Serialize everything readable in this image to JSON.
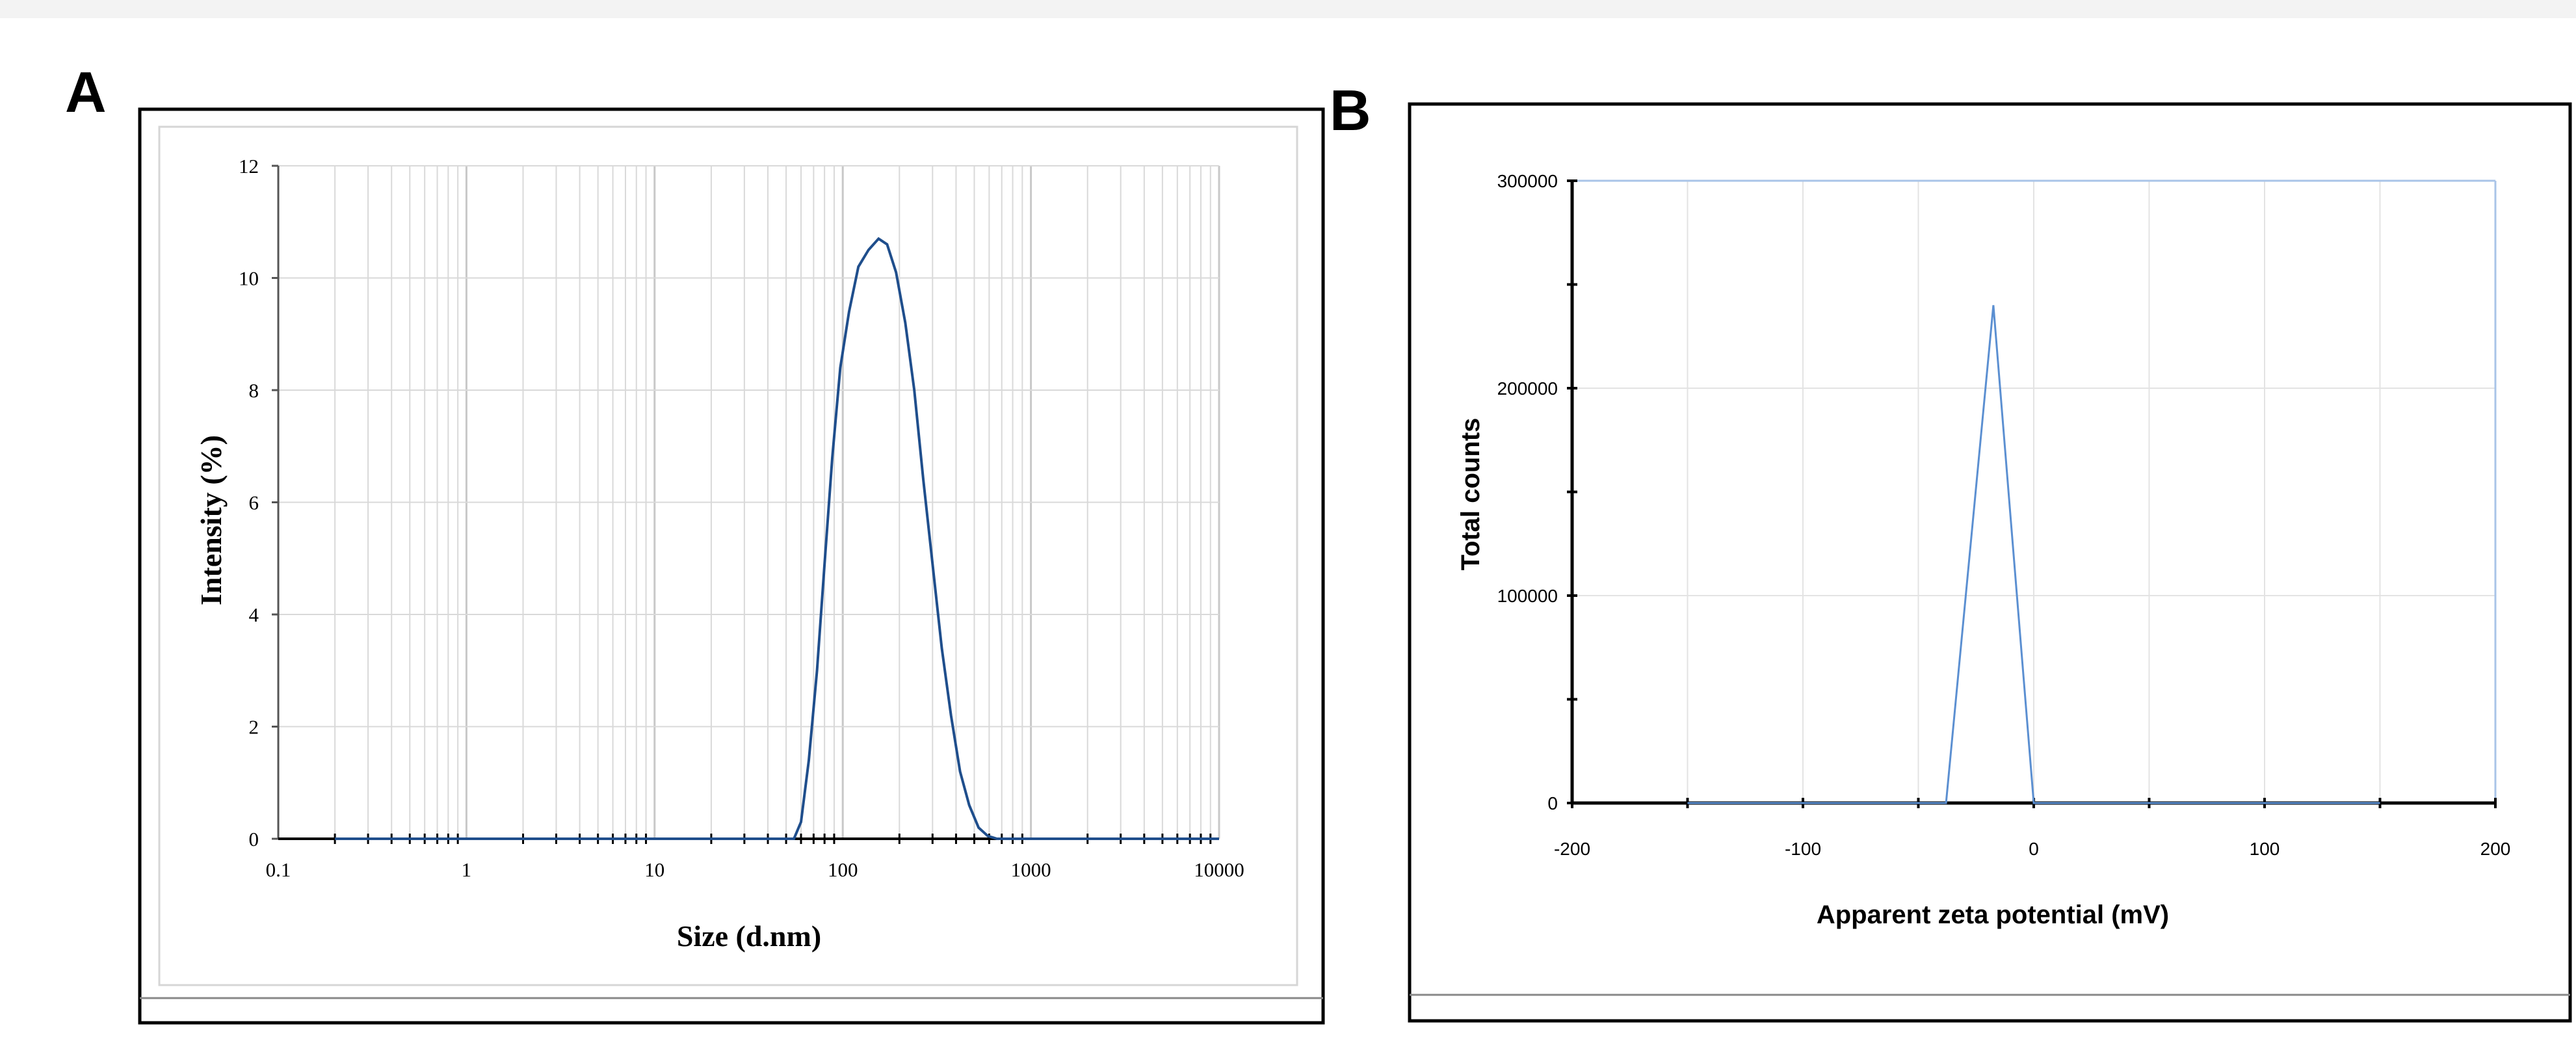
{
  "panels": {
    "a": {
      "label": "A"
    },
    "b": {
      "label": "B"
    }
  },
  "colors": {
    "line_a": "#1f4e8c",
    "line_b": "#5b8fd1",
    "grid": "#d9d9d9",
    "frame_b_top": "#a9c4e8"
  },
  "chart_data": [
    {
      "id": "size-distribution",
      "type": "line",
      "xscale": "log",
      "xlabel": "Size (d.nm)",
      "ylabel": "Intensity (%)",
      "xlim": [
        0.1,
        10000
      ],
      "ylim": [
        0,
        12
      ],
      "x_ticks": [
        0.1,
        1,
        10,
        100,
        1000,
        10000
      ],
      "x_tick_labels": [
        "0.1",
        "1",
        "10",
        "100",
        "1000",
        "10000"
      ],
      "y_ticks": [
        0,
        2,
        4,
        6,
        8,
        10,
        12
      ],
      "y_tick_labels": [
        "0",
        "2",
        "4",
        "6",
        "8",
        "10",
        "12"
      ],
      "grid": true,
      "series": [
        {
          "name": "Intensity",
          "x": [
            0.2,
            55,
            60,
            66,
            73,
            80,
            88,
            97,
            108,
            121,
            137,
            155,
            172,
            192,
            215,
            240,
            268,
            300,
            336,
            376,
            420,
            470,
            527,
            590,
            660,
            740,
            10000
          ],
          "y": [
            0,
            0,
            0.3,
            1.4,
            3.0,
            4.9,
            6.8,
            8.4,
            9.4,
            10.2,
            10.5,
            10.7,
            10.6,
            10.1,
            9.2,
            8.0,
            6.4,
            4.9,
            3.4,
            2.2,
            1.2,
            0.6,
            0.2,
            0.05,
            0,
            0,
            0
          ]
        }
      ]
    },
    {
      "id": "zeta-potential",
      "type": "line",
      "xlabel": "Apparent zeta potential (mV)",
      "ylabel": "Total counts",
      "xlim": [
        -200,
        200
      ],
      "ylim": [
        0,
        300000
      ],
      "x_ticks": [
        -200,
        -100,
        0,
        100,
        200
      ],
      "x_tick_labels": [
        "-200",
        "-100",
        "0",
        "100",
        "200"
      ],
      "y_ticks": [
        0,
        100000,
        200000,
        300000
      ],
      "y_tick_labels": [
        "0",
        "100000",
        "200000",
        "300000"
      ],
      "grid": true,
      "series": [
        {
          "name": "Total counts",
          "x": [
            -150,
            -38,
            -17.5,
            0,
            150
          ],
          "y": [
            0,
            0,
            240000,
            0,
            0
          ]
        }
      ]
    }
  ]
}
